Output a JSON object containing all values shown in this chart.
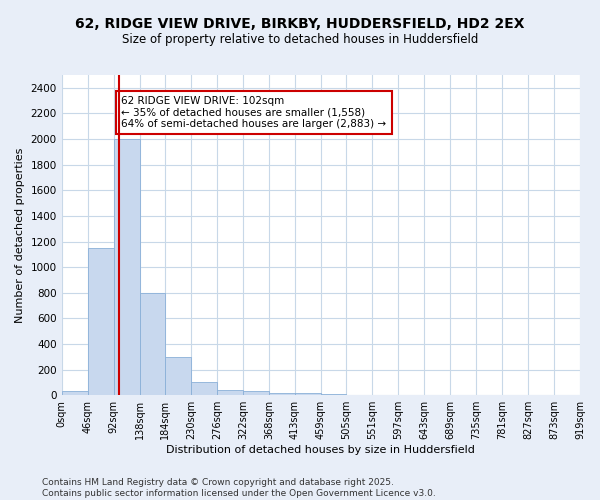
{
  "title_line1": "62, RIDGE VIEW DRIVE, BIRKBY, HUDDERSFIELD, HD2 2EX",
  "title_line2": "Size of property relative to detached houses in Huddersfield",
  "xlabel": "Distribution of detached houses by size in Huddersfield",
  "ylabel": "Number of detached properties",
  "bar_color": "#c8d8ee",
  "bar_edge_color": "#8ab0d8",
  "vline_color": "#cc0000",
  "vline_x": 102,
  "annotation_text": "62 RIDGE VIEW DRIVE: 102sqm\n← 35% of detached houses are smaller (1,558)\n64% of semi-detached houses are larger (2,883) →",
  "annotation_box_color": "#ffffff",
  "annotation_box_edge": "#cc0000",
  "bin_edges": [
    0,
    46,
    92,
    138,
    184,
    230,
    276,
    322,
    368,
    413,
    459,
    505,
    551,
    597,
    643,
    689,
    735,
    781,
    827,
    873,
    919
  ],
  "bin_labels": [
    "0sqm",
    "46sqm",
    "92sqm",
    "138sqm",
    "184sqm",
    "230sqm",
    "276sqm",
    "322sqm",
    "368sqm",
    "413sqm",
    "459sqm",
    "505sqm",
    "551sqm",
    "597sqm",
    "643sqm",
    "689sqm",
    "735sqm",
    "781sqm",
    "827sqm",
    "873sqm",
    "919sqm"
  ],
  "bar_heights": [
    30,
    1150,
    2000,
    800,
    300,
    100,
    40,
    35,
    20,
    15,
    10,
    5,
    2,
    2,
    1,
    1,
    1,
    1,
    1,
    1
  ],
  "ylim": [
    0,
    2500
  ],
  "yticks": [
    0,
    200,
    400,
    600,
    800,
    1000,
    1200,
    1400,
    1600,
    1800,
    2000,
    2200,
    2400
  ],
  "footer_text": "Contains HM Land Registry data © Crown copyright and database right 2025.\nContains public sector information licensed under the Open Government Licence v3.0.",
  "outer_bg": "#e8eef8",
  "plot_bg": "#ffffff",
  "grid_color": "#c8d8e8"
}
